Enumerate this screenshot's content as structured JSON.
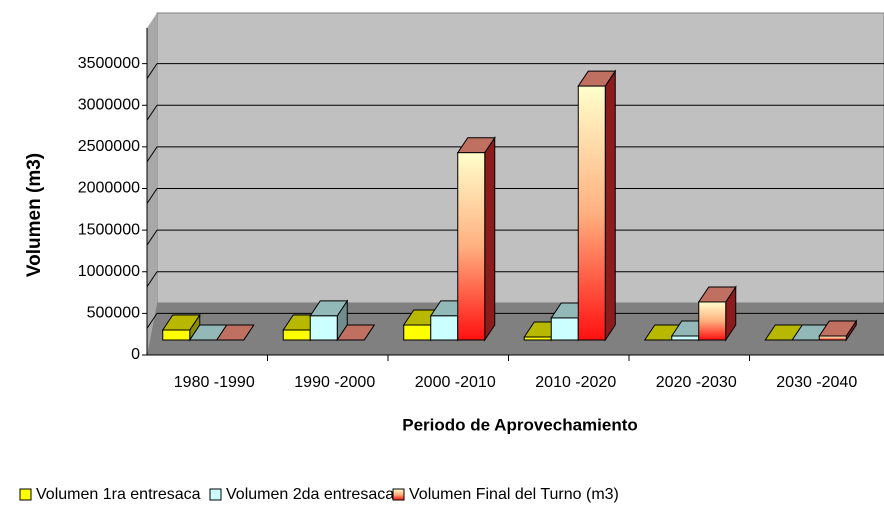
{
  "chart_data": {
    "type": "bar3d",
    "y_label": "Volumen (m3)",
    "x_label": "Periodo de Aprovechamiento",
    "categories": [
      "1980 -1990",
      "1990 -2000",
      "2000 -2010",
      "2010 -2020",
      "2020 -2030",
      "2030 -2040"
    ],
    "series": [
      {
        "name": "Volumen 1ra entresaca",
        "color": "#ffff00",
        "values": [
          120000,
          120000,
          180000,
          36000,
          0,
          0
        ]
      },
      {
        "name": "Volumen 2da entresaca",
        "color": "#ccffff",
        "values": [
          0,
          290000,
          290000,
          265000,
          48000,
          0
        ]
      },
      {
        "name": "Volumen Final del Turno (m3)",
        "color": "#ff3333",
        "values": [
          0,
          0,
          2250000,
          3050000,
          457000,
          48000
        ]
      }
    ],
    "ylim": [
      0,
      4000000
    ],
    "yticks": [
      0,
      500000,
      1000000,
      1500000,
      2000000,
      2500000,
      3000000,
      3500000
    ],
    "grid": true,
    "legend": "bottom"
  }
}
